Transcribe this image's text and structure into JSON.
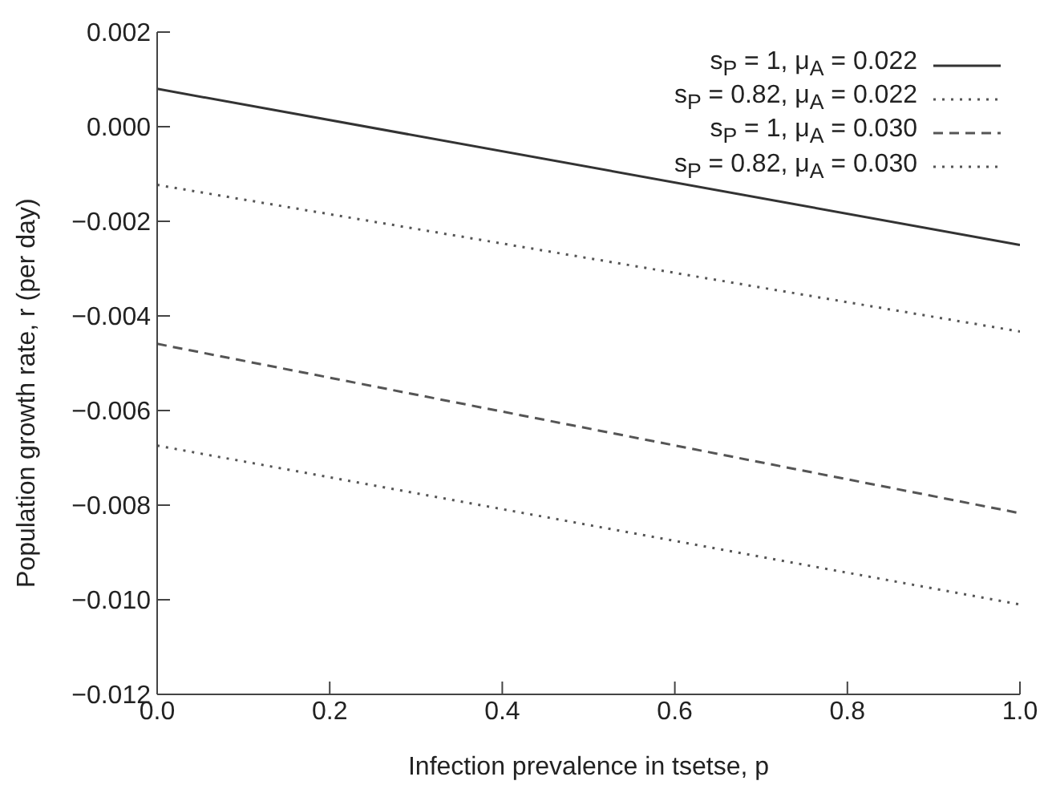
{
  "chart_data": {
    "type": "line",
    "xlabel": "Infection prevalence in tsetse, p",
    "ylabel": "Population growth rate, r (per day)",
    "x": [
      0,
      1
    ],
    "series": [
      {
        "name": "s$_{P}$ = 1, μ$_{A}$ = 0.022",
        "color": "#333333",
        "line_style": "solid",
        "values": [
          0.0008,
          -0.0025
        ]
      },
      {
        "name": "s$_{P}$ = 0.82, μ$_{A}$ = 0.022",
        "color": "#555555",
        "line_style": "dotted",
        "values": [
          -0.00123,
          -0.00433
        ]
      },
      {
        "name": "s$_{P}$ = 1, μ$_{A}$ = 0.030",
        "color": "#555555",
        "line_style": "dashed",
        "values": [
          -0.00459,
          -0.00817
        ]
      },
      {
        "name": "s$_{P}$ = 0.82, μ$_{A}$ = 0.030",
        "color": "#555555",
        "line_style": "dotted",
        "values": [
          -0.00674,
          -0.0101
        ]
      }
    ],
    "xlim": [
      0,
      1
    ],
    "xticks": [
      {
        "value": 0,
        "label": "0.0"
      },
      {
        "value": 0.2,
        "label": "0.2"
      },
      {
        "value": 0.4,
        "label": "0.4"
      },
      {
        "value": 0.6,
        "label": "0.6"
      },
      {
        "value": 0.8,
        "label": "0.8"
      },
      {
        "value": 1,
        "label": "1.0"
      }
    ],
    "ylim": [
      -0.012,
      0.002
    ],
    "yticks": [
      {
        "value": 0.002,
        "label": "0.002"
      },
      {
        "value": 0,
        "label": "0.000"
      },
      {
        "value": -0.002,
        "label": "−0.002"
      },
      {
        "value": -0.004,
        "label": "−0.004"
      },
      {
        "value": -0.006,
        "label": "−0.006"
      },
      {
        "value": -0.008,
        "label": "−0.008"
      },
      {
        "value": -0.01,
        "label": "−0.010"
      },
      {
        "value": -0.012,
        "label": "−0.012"
      }
    ],
    "legend": "top right",
    "grid": false,
    "marker": "none"
  }
}
